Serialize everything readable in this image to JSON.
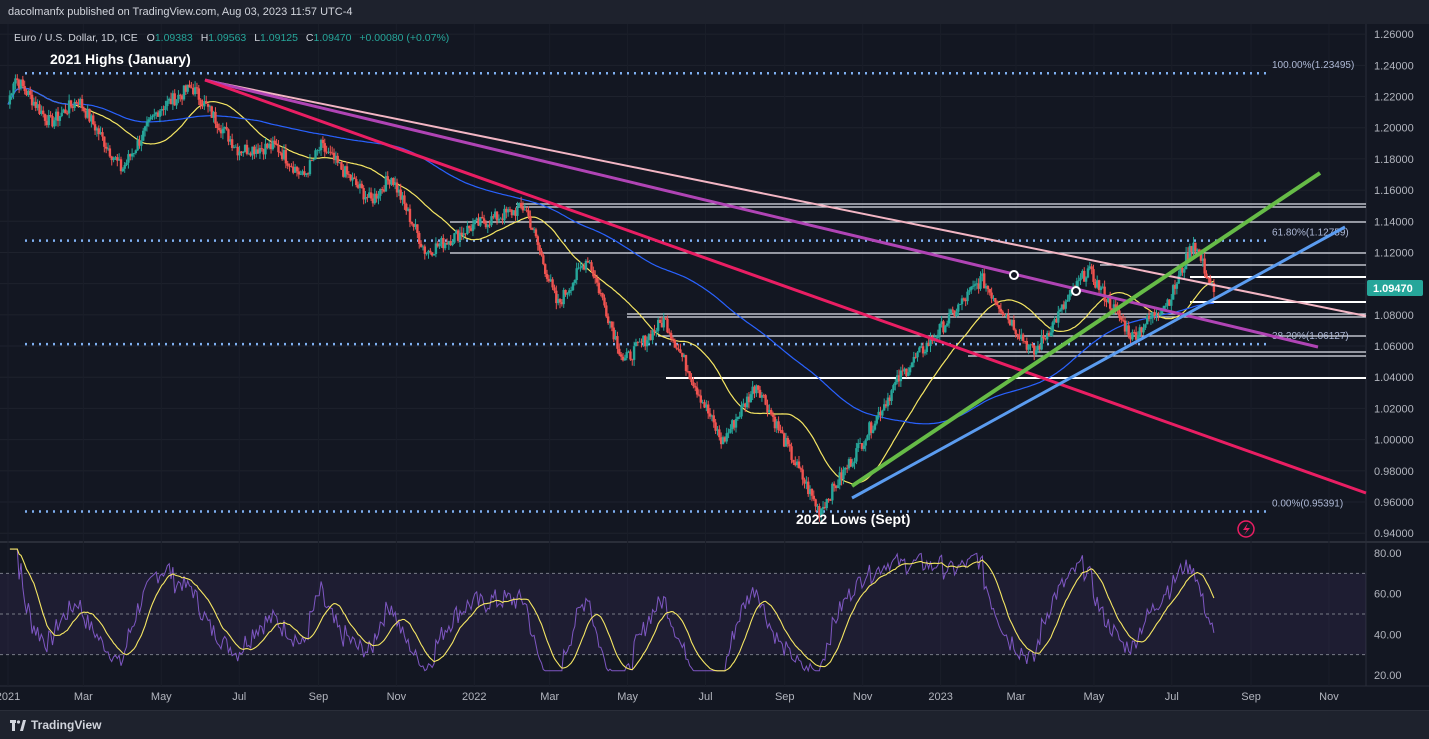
{
  "header": {
    "publisher_line": "dacolmanfx published on TradingView.com, Aug 03, 2023 11:57 UTC-4"
  },
  "footer": {
    "brand": "TradingView"
  },
  "colors": {
    "background": "#131722",
    "up": "#26a69a",
    "down": "#ef5350",
    "ma50": "#f5e663",
    "ma200": "#2962ff",
    "rsi": "#7e57c2",
    "rsi_signal": "#f5e663",
    "green_trendline": "#66bb47",
    "blue_trendline": "#5b9cf0",
    "magenta_trendline": "#b044b5",
    "red_trendline": "#e91e63",
    "pink_trendline": "#f3b6c4"
  },
  "chart_data": {
    "type": "candlestick",
    "symbol_legend": {
      "name": "Euro / U.S. Dollar, 1D, ICE",
      "o_label": "O",
      "o": "1.09383",
      "h_label": "H",
      "h": "1.09563",
      "l_label": "L",
      "l": "1.09125",
      "c_label": "C",
      "c": "1.09470",
      "change": "+0.00080 (+0.07%)"
    },
    "last_price_label": "1.09470",
    "last_price": 1.0947,
    "ylim": [
      0.935,
      1.2665
    ],
    "y_ticks": [
      "1.26000",
      "1.24000",
      "1.22000",
      "1.20000",
      "1.18000",
      "1.16000",
      "1.14000",
      "1.12000",
      "1.10000",
      "1.08000",
      "1.06000",
      "1.04000",
      "1.02000",
      "1.00000",
      "0.98000",
      "0.96000",
      "0.94000"
    ],
    "x_ticks": [
      "2021",
      "Mar",
      "May",
      "Jul",
      "Sep",
      "Nov",
      "2022",
      "Mar",
      "May",
      "Jul",
      "Sep",
      "Nov",
      "2023",
      "Mar",
      "May",
      "Jul",
      "Sep",
      "Nov"
    ],
    "x_range": [
      "2021-01-01",
      "2023-11-30"
    ],
    "price_path": [
      [
        "2021-01-01",
        1.215
      ],
      [
        "2021-01-06",
        1.233
      ],
      [
        "2021-02-03",
        1.203
      ],
      [
        "2021-02-25",
        1.218
      ],
      [
        "2021-03-31",
        1.173
      ],
      [
        "2021-04-29",
        1.212
      ],
      [
        "2021-05-25",
        1.226
      ],
      [
        "2021-06-30",
        1.186
      ],
      [
        "2021-07-30",
        1.188
      ],
      [
        "2021-08-20",
        1.168
      ],
      [
        "2021-09-03",
        1.188
      ],
      [
        "2021-10-12",
        1.153
      ],
      [
        "2021-10-28",
        1.169
      ],
      [
        "2021-11-24",
        1.12
      ],
      [
        "2021-12-31",
        1.137
      ],
      [
        "2022-02-10",
        1.149
      ],
      [
        "2022-03-07",
        1.086
      ],
      [
        "2022-03-31",
        1.117
      ],
      [
        "2022-04-28",
        1.05
      ],
      [
        "2022-05-30",
        1.077
      ],
      [
        "2022-07-14",
        0.998
      ],
      [
        "2022-08-10",
        1.036
      ],
      [
        "2022-09-06",
        0.99
      ],
      [
        "2022-09-28",
        0.954
      ],
      [
        "2022-10-24",
        0.988
      ],
      [
        "2022-11-30",
        1.04
      ],
      [
        "2022-12-31",
        1.07
      ],
      [
        "2023-02-02",
        1.103
      ],
      [
        "2023-03-15",
        1.055
      ],
      [
        "2023-04-26",
        1.109
      ],
      [
        "2023-05-31",
        1.066
      ],
      [
        "2023-06-30",
        1.091
      ],
      [
        "2023-07-18",
        1.127
      ],
      [
        "2023-08-03",
        1.0947
      ]
    ],
    "levels": [
      {
        "value": 1.23495,
        "label": "100.00%(1.23495)",
        "style": "dotted"
      },
      {
        "value": 1.12759,
        "label": "61.80%(1.12759)",
        "style": "dotted"
      },
      {
        "value": 1.06127,
        "label": "38.20%(1.06127)",
        "style": "dotted"
      },
      {
        "value": 0.95391,
        "label": "0.00%(0.95391)",
        "style": "dotted"
      }
    ],
    "annotations": {
      "top": "2021 Highs (January)",
      "bottom": "2022 Lows (Sept)"
    },
    "rsi": {
      "ylim": [
        15,
        85
      ],
      "ticks": [
        "80.00",
        "60.00",
        "40.00",
        "20.00"
      ],
      "overbought": 70,
      "oversold": 30,
      "midline": 50
    }
  }
}
